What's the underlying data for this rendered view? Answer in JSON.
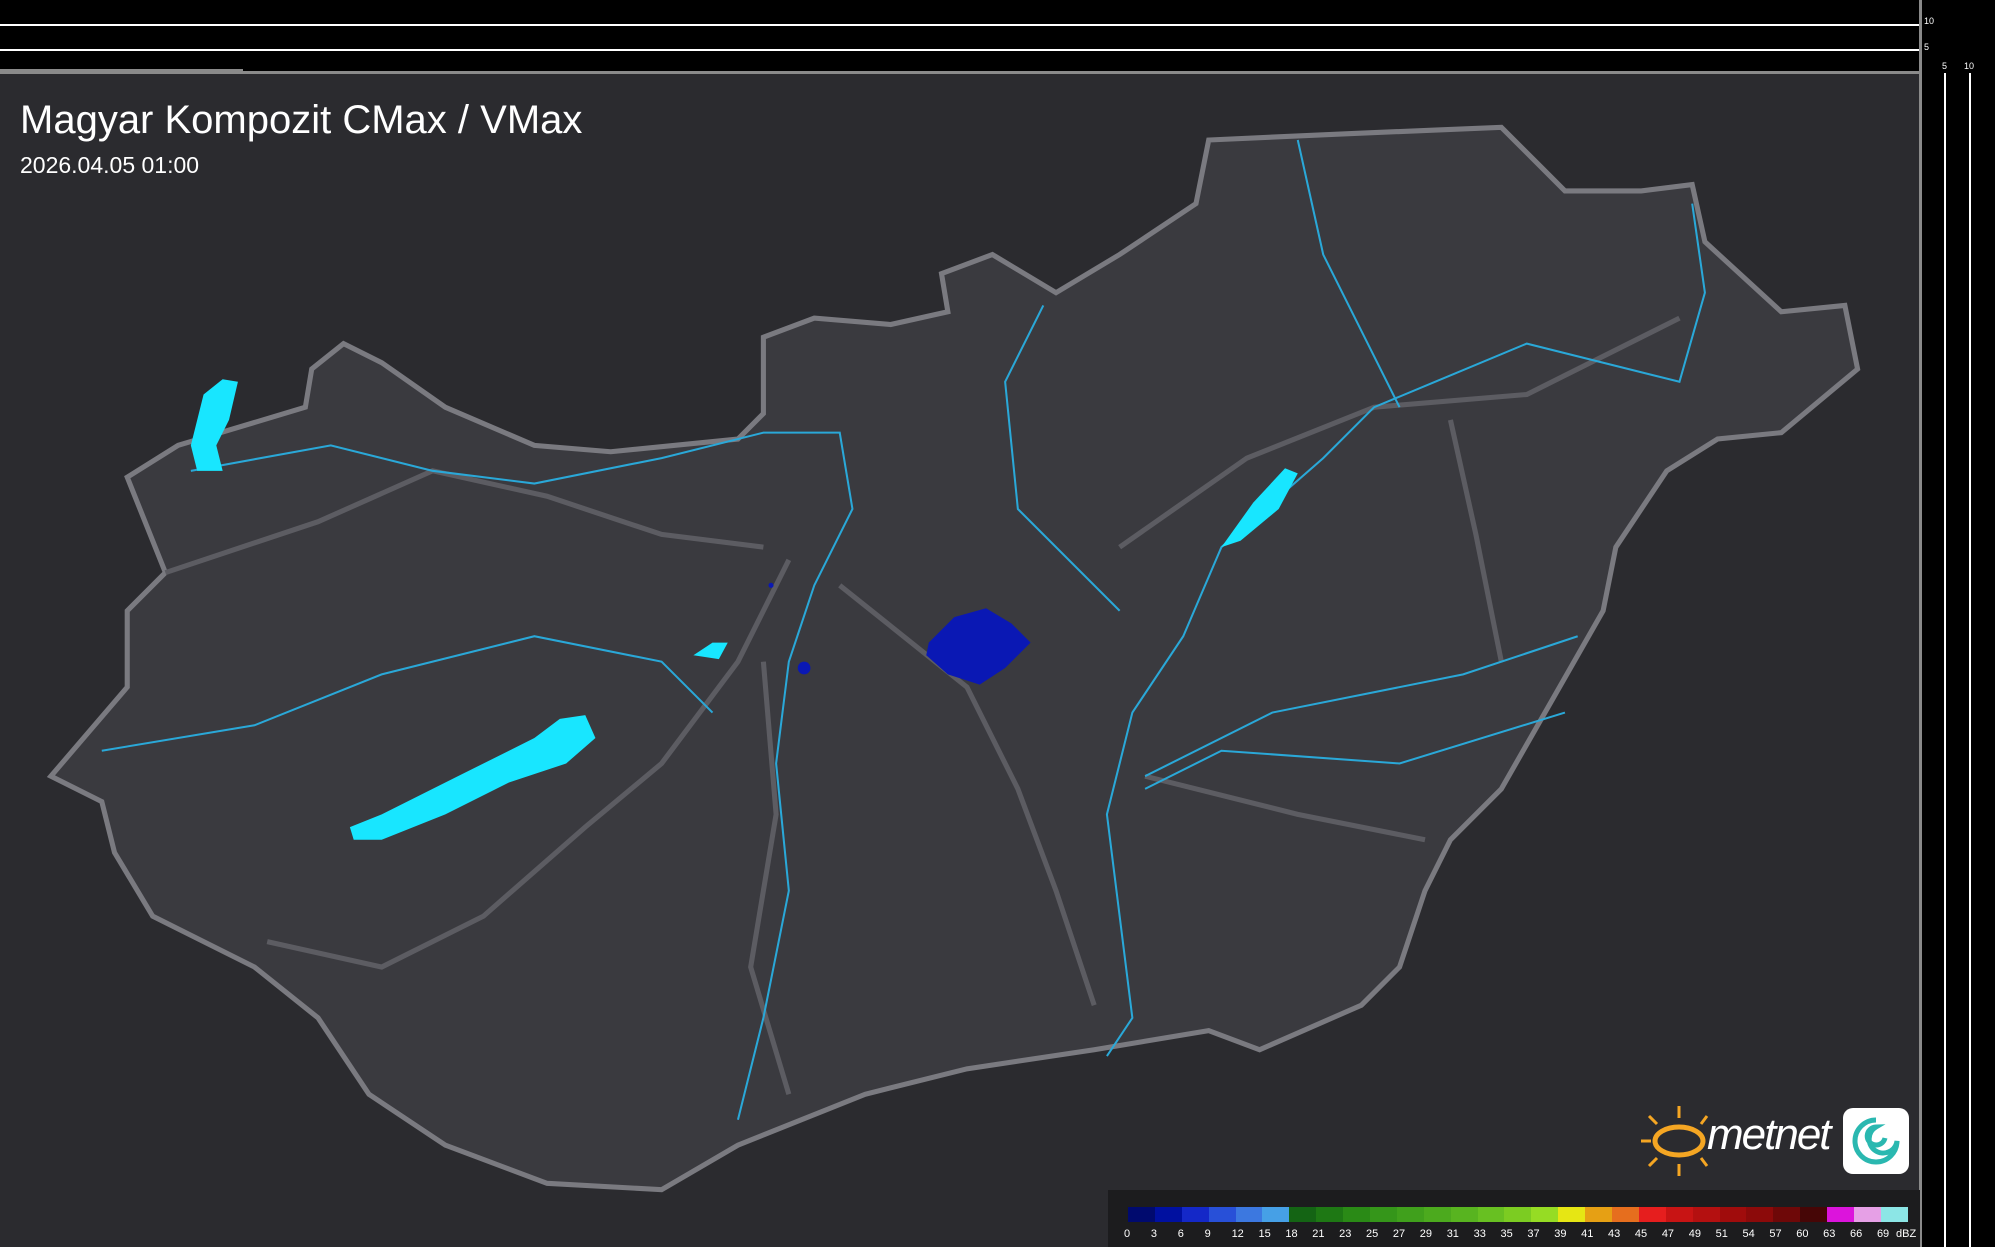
{
  "header": {
    "title": "Magyar Kompozit CMax / VMax",
    "timestamp": "2026.04.05 01:00"
  },
  "scale_bars": {
    "vertical_labels": [
      "10",
      "5"
    ],
    "horizontal_labels": [
      "5",
      "10"
    ]
  },
  "logo": {
    "brand": "metnet",
    "icon": "metnet-swirl-icon"
  },
  "colors": {
    "background": "#2b2b2f",
    "country_fill": "#3a3a3f",
    "border": "#7a7a80",
    "lakes": "#18e6ff",
    "rivers": "#2aa8d8",
    "precip": "#0a18b4"
  },
  "legend": {
    "unit": "dBZ",
    "items": [
      {
        "label": "0",
        "color": "#000a6e"
      },
      {
        "label": "3",
        "color": "#0010a0"
      },
      {
        "label": "6",
        "color": "#1428c8"
      },
      {
        "label": "9",
        "color": "#2850d8"
      },
      {
        "label": "12",
        "color": "#3c78e0"
      },
      {
        "label": "15",
        "color": "#46a0e6"
      },
      {
        "label": "18",
        "color": "#146414"
      },
      {
        "label": "21",
        "color": "#1e7814"
      },
      {
        "label": "23",
        "color": "#2a8a16"
      },
      {
        "label": "25",
        "color": "#35961a"
      },
      {
        "label": "27",
        "color": "#40a01c"
      },
      {
        "label": "29",
        "color": "#4caa1e"
      },
      {
        "label": "31",
        "color": "#58b420"
      },
      {
        "label": "33",
        "color": "#68c022"
      },
      {
        "label": "35",
        "color": "#7ccc22"
      },
      {
        "label": "37",
        "color": "#96dc24"
      },
      {
        "label": "39",
        "color": "#e6e614"
      },
      {
        "label": "41",
        "color": "#e6a014"
      },
      {
        "label": "43",
        "color": "#e66e1e"
      },
      {
        "label": "45",
        "color": "#e61e1e"
      },
      {
        "label": "47",
        "color": "#c81414"
      },
      {
        "label": "49",
        "color": "#b41010"
      },
      {
        "label": "51",
        "color": "#a00c0c"
      },
      {
        "label": "54",
        "color": "#8c0a0a"
      },
      {
        "label": "57",
        "color": "#6e0808"
      },
      {
        "label": "60",
        "color": "#460606"
      },
      {
        "label": "63",
        "color": "#dc14dc"
      },
      {
        "label": "66",
        "color": "#e6a0e6"
      },
      {
        "label": "69",
        "color": "#8ce6e6"
      }
    ]
  }
}
